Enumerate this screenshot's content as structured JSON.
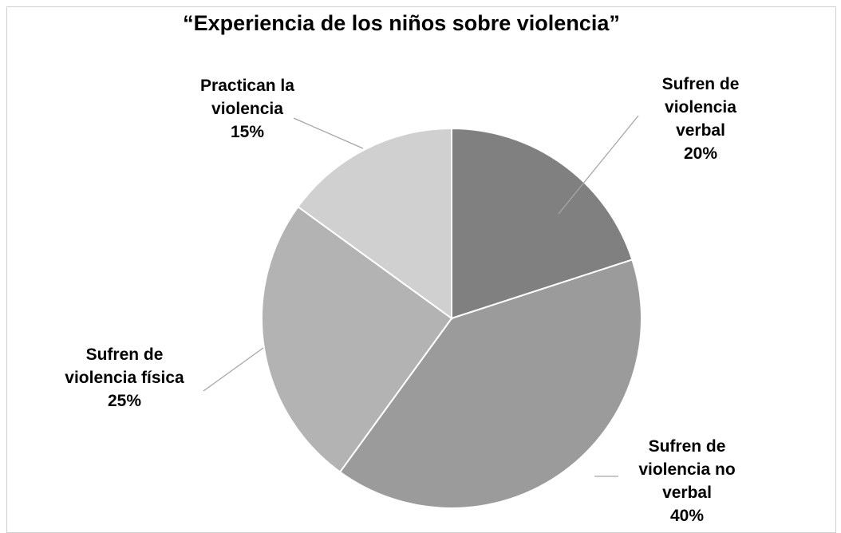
{
  "chart_data": {
    "type": "pie",
    "title": "“Experiencia de los niños sobre violencia”",
    "slices": [
      {
        "label_lines": [
          "Sufren de",
          "violencia",
          "verbal"
        ],
        "percent_label": "20%",
        "value": 20,
        "color": "#808080"
      },
      {
        "label_lines": [
          "Sufren de",
          "violencia no",
          "verbal"
        ],
        "percent_label": "40%",
        "value": 40,
        "color": "#9b9b9b"
      },
      {
        "label_lines": [
          "Sufren de",
          "violencia física"
        ],
        "percent_label": "25%",
        "value": 25,
        "color": "#b3b3b3"
      },
      {
        "label_lines": [
          "Practican la",
          "violencia"
        ],
        "percent_label": "15%",
        "value": 15,
        "color": "#d0d0d0"
      }
    ],
    "start_angle_deg": 0,
    "direction": "clockwise",
    "legend": "none",
    "data_labels": "outside-with-leader-lines"
  }
}
